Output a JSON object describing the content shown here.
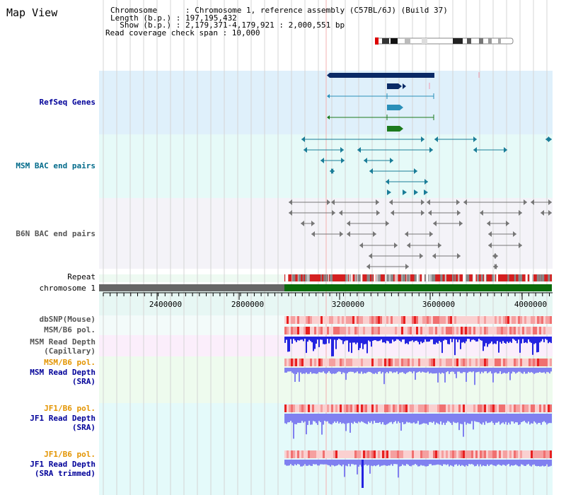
{
  "header": {
    "title": "Map View",
    "info_lines": [
      "Chromosome      : Chromosome 1, reference assembly (C57BL/6J) (Build 37)",
      "Length (b.p.) : 197,195,432",
      "  Show (b.p.) : 2,179,371-4,179,921 : 2,000,551 bp",
      "Read coverage check span : 10,000"
    ]
  },
  "tracks": {
    "refseq": "RefSeq Genes",
    "msm_bac": "MSM BAC end pairs",
    "b6n_bac": "B6N BAC end pairs",
    "repeat": "Repeat",
    "chromosome": "chromosome 1",
    "dbsnp": "dbSNP(Mouse)",
    "msm_b6_pol_1": "MSM/B6 pol.",
    "msm_depth_cap_1": "MSM Read Depth",
    "msm_depth_cap_2": "(Capillary)",
    "msm_b6_pol_2": "MSM/B6 pol.",
    "msm_depth_sra_1": "MSM Read Depth",
    "msm_depth_sra_2": "(SRA)",
    "jf1_pol_1": "JF1/B6 pol.",
    "jf1_depth_sra_1": "JF1 Read Depth",
    "jf1_depth_sra_2": "(SRA)",
    "jf1_pol_2": "JF1/B6 pol.",
    "jf1_depth_trim_1": "JF1 Read Depth",
    "jf1_depth_trim_2": "(SRA trimmed)"
  },
  "axis": {
    "ticks": [
      "2400000",
      "2800000",
      "3200000",
      "3600000",
      "4000000"
    ]
  },
  "colors": {
    "refseq_bg": "#dff0fb",
    "msm_bac_bg": "#e6faf8",
    "b6n_bac_bg": "#f4f3f8",
    "gene_navy": "#0a2a66",
    "gene_teal": "#2a8fb8",
    "gene_green": "#1c7a1c",
    "chrom_green": "#0a6b0a",
    "chrom_grey": "#666666",
    "repeat_red": "#d42020",
    "depth_blue": "#2323e0",
    "depth_light": "#8080f0",
    "pol_pink": "#f4a6a6"
  }
}
